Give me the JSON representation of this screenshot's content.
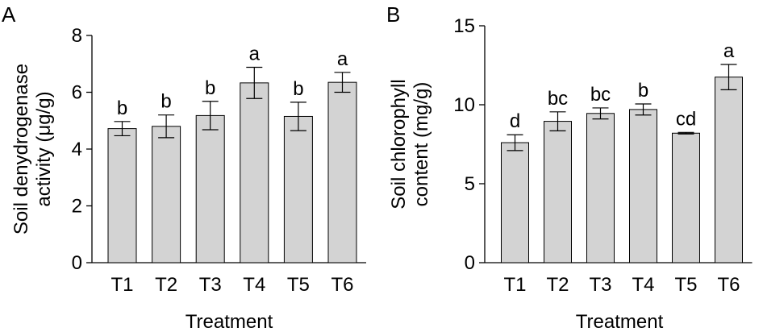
{
  "chart_data": [
    {
      "type": "bar",
      "panel_label": "A",
      "categories": [
        "T1",
        "T2",
        "T3",
        "T4",
        "T5",
        "T6"
      ],
      "values": [
        4.72,
        4.8,
        5.18,
        6.33,
        5.15,
        6.35
      ],
      "errors": [
        0.25,
        0.4,
        0.5,
        0.55,
        0.5,
        0.35
      ],
      "significance": [
        "b",
        "b",
        "b",
        "a",
        "b",
        "a"
      ],
      "xlabel": "Treatment",
      "ylabel": [
        "Soil denydrogenase",
        "activity (μg/g)"
      ],
      "ylim": [
        0,
        8
      ],
      "yticks": [
        0,
        2,
        4,
        6,
        8
      ],
      "grid": false,
      "bar_color": "#d3d3d3"
    },
    {
      "type": "bar",
      "panel_label": "B",
      "categories": [
        "T1",
        "T2",
        "T3",
        "T4",
        "T5",
        "T6"
      ],
      "values": [
        7.6,
        8.95,
        9.45,
        9.7,
        8.2,
        11.75
      ],
      "errors": [
        0.5,
        0.6,
        0.35,
        0.35,
        0.05,
        0.8
      ],
      "significance": [
        "d",
        "bc",
        "bc",
        "b",
        "cd",
        "a"
      ],
      "xlabel": "Treatment",
      "ylabel": [
        "Soil chlorophyll",
        "content (mg/g)"
      ],
      "ylim": [
        0,
        15
      ],
      "yticks": [
        0,
        5,
        10,
        15
      ],
      "grid": false,
      "bar_color": "#d3d3d3"
    }
  ]
}
